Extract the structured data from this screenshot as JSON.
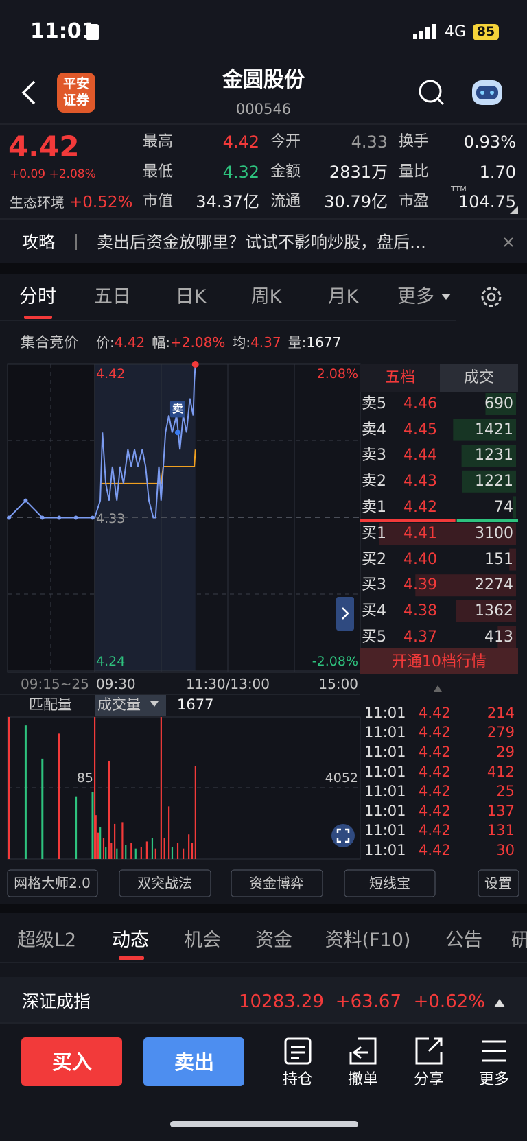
{
  "status_bar": {
    "time": "11:01",
    "network": "4G",
    "battery": "85"
  },
  "header": {
    "logo": [
      "平安",
      "证券"
    ],
    "title": "金圆股份",
    "code": "000546"
  },
  "quote": {
    "price": "4.42",
    "change": "+0.09 +2.08%",
    "sector": "生态环境",
    "sector_change": "+0.52%",
    "ttm": "TTM",
    "stats": [
      [
        "最高",
        "4.42",
        "今开",
        "4.33",
        "换手",
        "0.93%"
      ],
      [
        "最低",
        "4.32",
        "金额",
        "2831万",
        "量比",
        "1.70"
      ],
      [
        "市值",
        "34.37亿",
        "流通",
        "30.79亿",
        "市盈",
        "104.75"
      ]
    ]
  },
  "banner": {
    "tag": "攻略",
    "text": "卖出后资金放哪里？试试不影响炒股，盘后…"
  },
  "tabs": [
    "分时",
    "五日",
    "日K",
    "周K",
    "月K",
    "更多"
  ],
  "info": {
    "title": "集合竞价",
    "items": [
      [
        "价:",
        "4.42"
      ],
      [
        "幅:",
        "+2.08%"
      ],
      [
        "均:",
        "4.37"
      ],
      [
        "量:",
        "1677"
      ]
    ]
  },
  "intraday": {
    "ylim": [
      4.24,
      4.42
    ],
    "yticks": [
      4.42,
      4.33,
      4.24
    ],
    "pct_labels": [
      "2.08%",
      "-2.08%"
    ],
    "xlim": [
      0,
      240
    ],
    "time_labels": [
      "09:15~25",
      "09:30",
      "11:30/13:00",
      "15:00"
    ],
    "auction_prices": [
      4.33,
      4.34,
      4.33,
      4.33,
      4.33,
      4.33
    ],
    "minutes": [
      0,
      5,
      7,
      10,
      13,
      16,
      20,
      23,
      26,
      30,
      33,
      36,
      39,
      43,
      46,
      49,
      53,
      55,
      58,
      60,
      64,
      67,
      70,
      74,
      77,
      80,
      83,
      86,
      89,
      90,
      91
    ],
    "prices": [
      4.33,
      4.34,
      4.38,
      4.35,
      4.34,
      4.36,
      4.34,
      4.36,
      4.35,
      4.37,
      4.36,
      4.37,
      4.36,
      4.37,
      4.36,
      4.34,
      4.33,
      4.33,
      4.36,
      4.34,
      4.38,
      4.39,
      4.38,
      4.39,
      4.37,
      4.39,
      4.38,
      4.4,
      4.39,
      4.41,
      4.42
    ],
    "avg_minutes": [
      5,
      60,
      62,
      90,
      91
    ],
    "avg": [
      4.35,
      4.35,
      4.36,
      4.36,
      4.37
    ],
    "sell_marker": {
      "label": "卖",
      "minute": 75,
      "price": 4.38
    },
    "volume_header": [
      "匹配量",
      "成交量",
      "1677"
    ],
    "auction_volume_mid": 85,
    "volume_mid": 4052,
    "auction_volumes": [
      170,
      160,
      120,
      150,
      75,
      80
    ],
    "auction_volume_colors": [
      "#f23a3a",
      "#2ec27e",
      "#2ec27e",
      "#f23a3a",
      "#2ec27e",
      "#2ec27e"
    ],
    "volume_minutes": [
      0,
      1,
      3,
      5,
      8,
      10,
      13,
      15,
      18,
      20,
      25,
      28,
      33,
      37,
      42,
      47,
      52,
      55,
      60,
      63,
      67,
      70,
      75,
      80,
      85,
      88,
      91
    ],
    "volumes": [
      8100,
      2500,
      1500,
      1800,
      1200,
      700,
      5600,
      900,
      2000,
      600,
      2100,
      800,
      900,
      600,
      700,
      1000,
      1200,
      600,
      8100,
      1200,
      3000,
      700,
      900,
      600,
      1400,
      900,
      5300
    ],
    "volume_colors": [
      "#f23a3a",
      "#f23a3a",
      "#f23a3a",
      "#2ec27e",
      "#f23a3a",
      "#2ec27e",
      "#f23a3a",
      "#f23a3a",
      "#f23a3a",
      "#2ec27e",
      "#f23a3a",
      "#2ec27e",
      "#f23a3a",
      "#2ec27e",
      "#f23a3a",
      "#f23a3a",
      "#2ec27e",
      "#f23a3a",
      "#f23a3a",
      "#f23a3a",
      "#f23a3a",
      "#2ec27e",
      "#f23a3a",
      "#f23a3a",
      "#f23a3a",
      "#f23a3a",
      "#f23a3a"
    ]
  },
  "order_book": {
    "tabs": [
      "五档",
      "成交"
    ],
    "asks": [
      {
        "label": "卖5",
        "price": "4.46",
        "volume": 690
      },
      {
        "label": "卖4",
        "price": "4.45",
        "volume": 1421
      },
      {
        "label": "卖3",
        "price": "4.44",
        "volume": 1231
      },
      {
        "label": "卖2",
        "price": "4.43",
        "volume": 1221
      },
      {
        "label": "卖1",
        "price": "4.42",
        "volume": 74
      }
    ],
    "bids": [
      {
        "label": "买1",
        "price": "4.41",
        "volume": 3100
      },
      {
        "label": "买2",
        "price": "4.40",
        "volume": 151
      },
      {
        "label": "买3",
        "price": "4.39",
        "volume": 2274
      },
      {
        "label": "买4",
        "price": "4.38",
        "volume": 1362
      },
      {
        "label": "买5",
        "price": "4.37",
        "volume": 413
      }
    ],
    "upgrade": "开通10档行情"
  },
  "trades": [
    [
      "11:01",
      "4.42",
      214
    ],
    [
      "11:01",
      "4.42",
      279
    ],
    [
      "11:01",
      "4.42",
      29
    ],
    [
      "11:01",
      "4.42",
      412
    ],
    [
      "11:01",
      "4.42",
      25
    ],
    [
      "11:01",
      "4.42",
      137
    ],
    [
      "11:01",
      "4.42",
      131
    ],
    [
      "11:01",
      "4.42",
      30
    ]
  ],
  "tools": [
    "网格大师2.0",
    "双突战法",
    "资金博弈",
    "短线宝",
    "设置"
  ],
  "bottom_tabs": [
    "超级L2",
    "动态",
    "机会",
    "资金",
    "资料(F10)",
    "公告",
    "研"
  ],
  "index_bar": {
    "name": "深证成指",
    "value": "10283.29",
    "change": "+63.67",
    "pct": "+0.62%"
  },
  "actions": {
    "buy": "买入",
    "sell": "卖出",
    "items": [
      "持仓",
      "撤单",
      "分享",
      "更多"
    ]
  }
}
